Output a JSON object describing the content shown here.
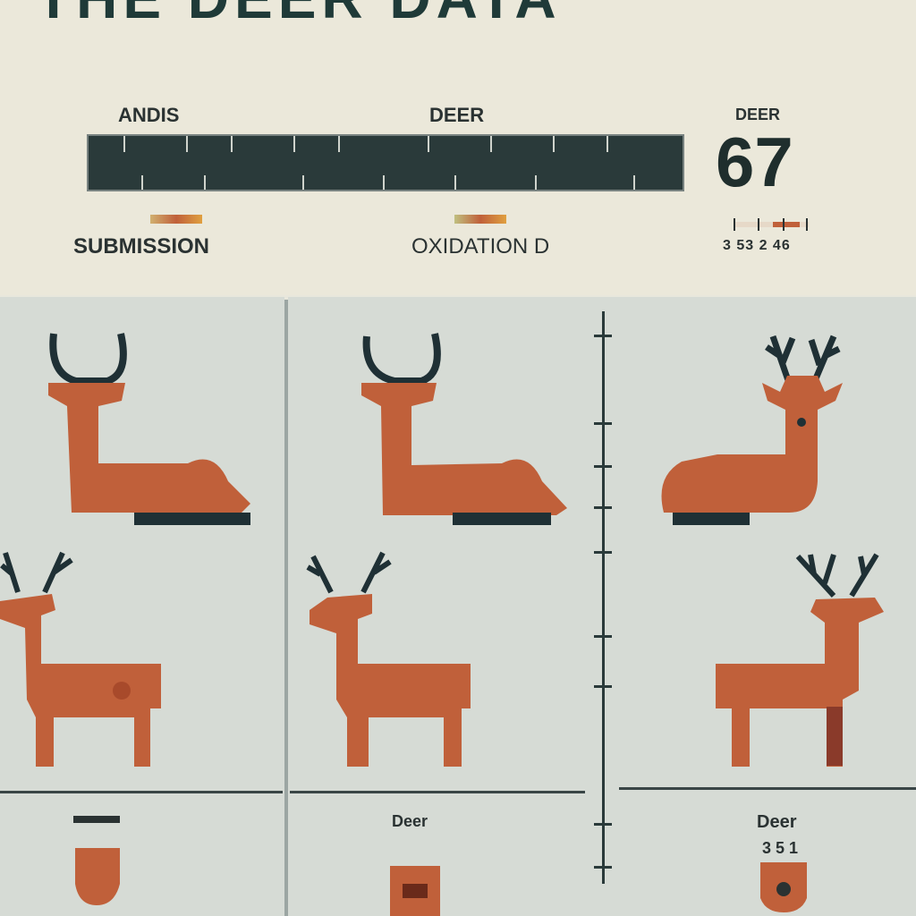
{
  "header": {
    "title": "THE DEER DATA",
    "left_label": "ANDIS",
    "mid_label": "DEER",
    "right_label": "DEER",
    "big_number": "67",
    "legend_left": "SUBMISSION",
    "legend_mid": "OXIDATION D",
    "scale_text": "3 53 2 46"
  },
  "bottom": {
    "center_label": "Deer",
    "right_label": "Deer",
    "right_number": "3 5 1"
  },
  "colors": {
    "deer_body": "#c0603a",
    "antler": "#1f3035",
    "bar": "#2a3a3a",
    "panel_bg": "#d6dbd5",
    "header_bg": "#ebe8da"
  }
}
